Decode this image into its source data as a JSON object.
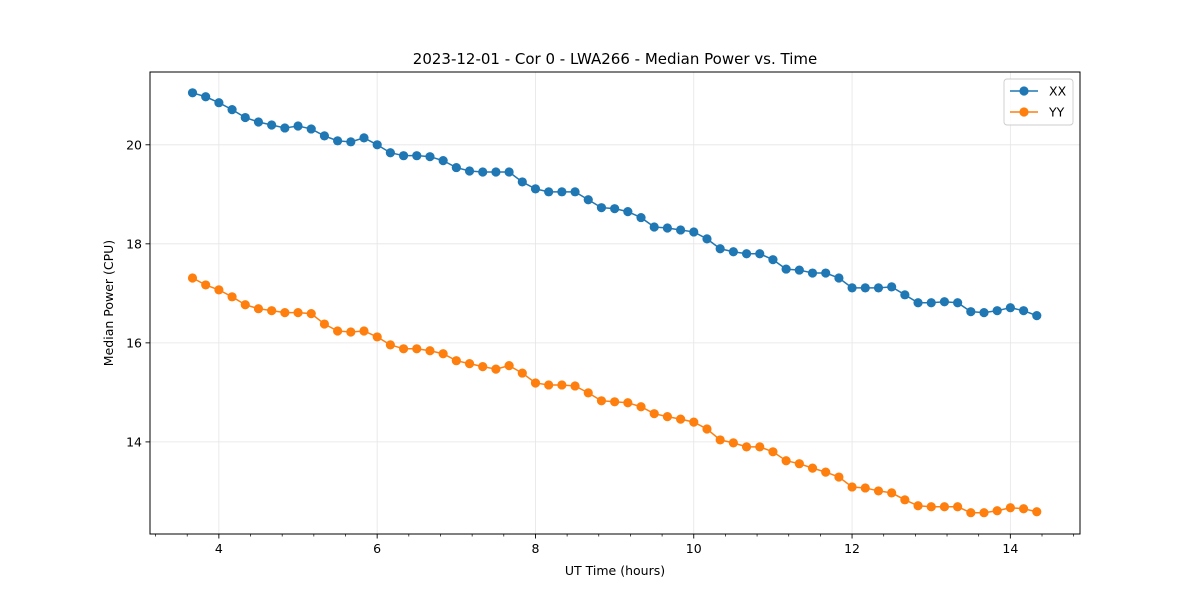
{
  "chart_data": {
    "type": "line",
    "title": "2023-12-01 - Cor 0 - LWA266 - Median Power vs. Time",
    "xlabel": "UT Time (hours)",
    "ylabel": "Median Power (CPU)",
    "xlim": [
      3.13,
      14.88
    ],
    "ylim": [
      12.14,
      21.47
    ],
    "xticks": [
      4,
      6,
      8,
      10,
      12,
      14
    ],
    "xtick_labels": [
      "4",
      "6",
      "8",
      "10",
      "12",
      "14"
    ],
    "x_minor_tick_step": 0.4,
    "yticks": [
      14,
      16,
      18,
      20
    ],
    "ytick_labels": [
      "14",
      "16",
      "18",
      "20"
    ],
    "grid": true,
    "legend_position": "top-right",
    "x_start": 3.667,
    "x_step": 0.16667,
    "series": [
      {
        "name": "XX",
        "color": "#1f77b4",
        "marker": "circle",
        "values": [
          21.05,
          20.97,
          20.85,
          20.71,
          20.55,
          20.46,
          20.4,
          20.34,
          20.38,
          20.32,
          20.18,
          20.08,
          20.06,
          20.14,
          20.0,
          19.84,
          19.78,
          19.78,
          19.76,
          19.68,
          19.54,
          19.47,
          19.45,
          19.45,
          19.45,
          19.25,
          19.11,
          19.05,
          19.05,
          19.05,
          18.89,
          18.73,
          18.71,
          18.65,
          18.53,
          18.34,
          18.32,
          18.28,
          18.24,
          18.1,
          17.9,
          17.84,
          17.8,
          17.8,
          17.68,
          17.49,
          17.47,
          17.41,
          17.41,
          17.31,
          17.11,
          17.11,
          17.11,
          17.13,
          16.97,
          16.81,
          16.81,
          16.83,
          16.81,
          16.63,
          16.61,
          16.65,
          16.71,
          16.65,
          16.55
        ]
      },
      {
        "name": "YY",
        "color": "#ff7f0e",
        "marker": "circle",
        "values": [
          17.31,
          17.17,
          17.07,
          16.93,
          16.77,
          16.69,
          16.65,
          16.61,
          16.61,
          16.59,
          16.38,
          16.24,
          16.22,
          16.24,
          16.12,
          15.96,
          15.88,
          15.88,
          15.84,
          15.78,
          15.64,
          15.58,
          15.52,
          15.47,
          15.54,
          15.39,
          15.19,
          15.15,
          15.15,
          15.13,
          14.99,
          14.83,
          14.81,
          14.79,
          14.71,
          14.57,
          14.51,
          14.46,
          14.4,
          14.26,
          14.04,
          13.98,
          13.9,
          13.9,
          13.8,
          13.62,
          13.56,
          13.47,
          13.39,
          13.29,
          13.09,
          13.07,
          13.01,
          12.97,
          12.83,
          12.71,
          12.69,
          12.69,
          12.69,
          12.57,
          12.57,
          12.61,
          12.67,
          12.65,
          12.59
        ]
      }
    ]
  }
}
